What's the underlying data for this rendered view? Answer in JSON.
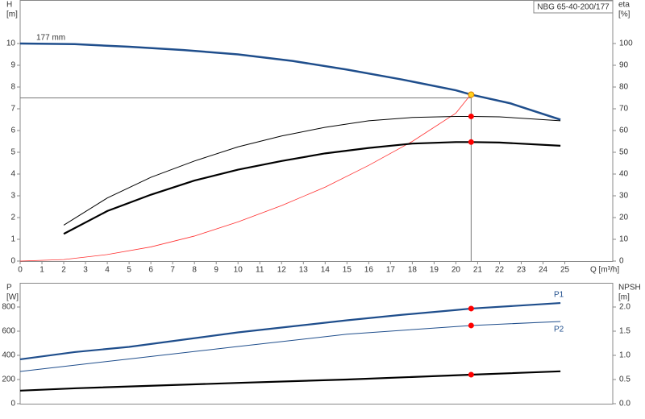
{
  "chart_data": [
    {
      "type": "line",
      "title": "NBG 65-40-200/177",
      "ylabel": [
        "H",
        "[m]"
      ],
      "y2label": [
        "eta",
        "[%]"
      ],
      "xlabel": "Q [m³/h]",
      "annotation": "177 mm",
      "xlim": [
        0,
        27.2
      ],
      "xticks": [
        0,
        1,
        2,
        3,
        4,
        5,
        6,
        7,
        8,
        9,
        10,
        11,
        12,
        13,
        14,
        15,
        16,
        17,
        18,
        19,
        20,
        21,
        22,
        23,
        24,
        25
      ],
      "ylim": [
        0,
        12
      ],
      "yticks": [
        0,
        1,
        2,
        3,
        4,
        5,
        6,
        7,
        8,
        9,
        10
      ],
      "y2lim": [
        0,
        120
      ],
      "y2ticks": [
        0,
        10,
        20,
        30,
        40,
        50,
        60,
        70,
        80,
        90,
        100
      ],
      "operating_q": 20.7,
      "operating_h": 7.5,
      "series": [
        {
          "color": "#1f4e8c",
          "line_width": 2.5,
          "marker_color": "#ffd21f",
          "x": [
            0,
            2.5,
            5,
            7.5,
            10,
            12.5,
            15,
            17.5,
            20,
            20.7,
            22.5,
            24.8
          ],
          "values": [
            10,
            9.97,
            9.85,
            9.7,
            9.5,
            9.2,
            8.8,
            8.35,
            7.85,
            7.65,
            7.25,
            6.5
          ]
        },
        {
          "color": "#ff3030",
          "line_width": 0.8,
          "x": [
            0,
            2,
            4,
            6,
            8,
            10,
            12,
            14,
            16,
            18,
            20,
            20.6
          ],
          "values": [
            0,
            0.07,
            0.3,
            0.65,
            1.15,
            1.8,
            2.55,
            3.4,
            4.4,
            5.5,
            6.8,
            7.55
          ]
        },
        {
          "color": "#000000",
          "line_width": 1,
          "axis": "y2",
          "marker_color": "#ff0000",
          "x": [
            2,
            4,
            6,
            8,
            10,
            12,
            14,
            16,
            18,
            20,
            20.7,
            22,
            24.8
          ],
          "values": [
            16.5,
            29,
            38.5,
            46,
            52.5,
            57.5,
            61.5,
            64.5,
            66,
            66.5,
            66.5,
            66.3,
            64.5
          ]
        },
        {
          "color": "#000000",
          "line_width": 2.2,
          "axis": "y2",
          "marker_color": "#ff0000",
          "x": [
            2,
            4,
            6,
            8,
            10,
            12,
            14,
            16,
            18,
            20,
            20.7,
            22,
            24.8
          ],
          "values": [
            12.5,
            23,
            30.5,
            37,
            42,
            46,
            49.5,
            52,
            54,
            54.7,
            54.7,
            54.5,
            53
          ]
        }
      ]
    },
    {
      "type": "line",
      "ylabel": [
        "P",
        "[W]"
      ],
      "y2label": [
        "NPSH",
        "[m]"
      ],
      "xlim": [
        0,
        27.2
      ],
      "ylim": [
        0,
        1000
      ],
      "yticks": [
        0,
        200,
        400,
        600,
        800
      ],
      "y2lim": [
        0,
        2.5
      ],
      "y2ticks": [
        {
          "value": 0,
          "label": "0.0"
        },
        {
          "value": 0.5,
          "label": "0.5"
        },
        {
          "value": 1,
          "label": "1.0"
        },
        {
          "value": 1.5,
          "label": "1.5"
        },
        {
          "value": 2,
          "label": "2.0"
        }
      ],
      "operating_q": 20.7,
      "series": [
        {
          "name": "P1",
          "color": "#1f4e8c",
          "line_width": 2.2,
          "marker_color": "#ff0000",
          "x": [
            0,
            2.5,
            5,
            7.5,
            10,
            12.5,
            15,
            17.5,
            20,
            20.7,
            24.8
          ],
          "values": [
            367,
            427,
            470,
            530,
            590,
            640,
            690,
            735,
            775,
            787,
            833
          ]
        },
        {
          "name": "P2",
          "color": "#1f4e8c",
          "line_width": 1,
          "marker_color": "#ff0000",
          "x": [
            0,
            5,
            10,
            15,
            20.7,
            24.8
          ],
          "values": [
            267,
            370,
            473,
            575,
            647,
            680
          ]
        },
        {
          "color": "#000000",
          "line_width": 2.2,
          "axis": "y2",
          "marker_color": "#ff0000",
          "x": [
            0,
            2.6,
            10,
            15,
            20.7,
            24.8
          ],
          "values": [
            0.27,
            0.32,
            0.43,
            0.5,
            0.6,
            0.67
          ]
        }
      ]
    }
  ]
}
